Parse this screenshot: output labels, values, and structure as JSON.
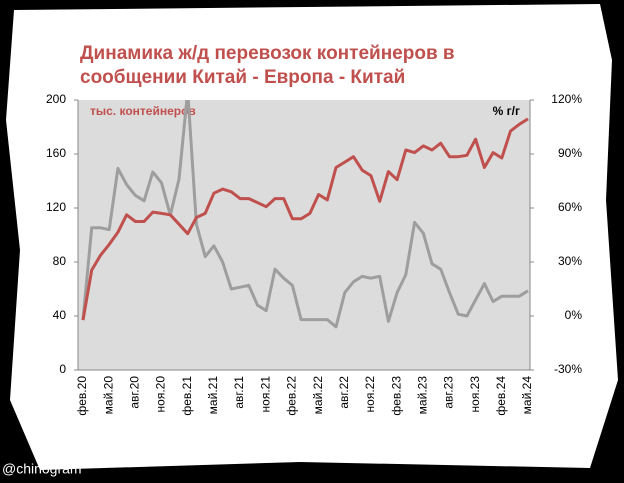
{
  "chart_data": {
    "type": "line",
    "title": "Динамика ж/д перевозок контейнеров в сообщении Китай - Европа - Китай",
    "ylabel": "тыс. контейнеров",
    "y2label": "% г/г",
    "credit": "@chinogram",
    "categories": [
      "фев.20",
      null,
      null,
      "май.20",
      null,
      null,
      "авг.20",
      null,
      null,
      "ноя.20",
      null,
      null,
      "фев.21",
      null,
      null,
      "май.21",
      null,
      null,
      "авг.21",
      null,
      null,
      "ноя.21",
      null,
      null,
      "фев.22",
      null,
      null,
      "май.22",
      null,
      null,
      "авг.22",
      null,
      null,
      "ноя.22",
      null,
      null,
      "фев.23",
      null,
      null,
      "май.23",
      null,
      null,
      "авг.23",
      null,
      null,
      "ноя.23",
      null,
      null,
      "фев.24",
      null,
      null,
      "май.24"
    ],
    "series": [
      {
        "name": "тыс. контейнеров",
        "color": "#c0504d",
        "axis": "y",
        "values": [
          37,
          74,
          85,
          93,
          102,
          115,
          110,
          110,
          117,
          116,
          115,
          108,
          101,
          113,
          116,
          131,
          134,
          132,
          127,
          127,
          124,
          121,
          127,
          127,
          112,
          112,
          116,
          130,
          126,
          150,
          154,
          158,
          148,
          144,
          125,
          147,
          141,
          163,
          161,
          166,
          163,
          168,
          158,
          158,
          159,
          171,
          150,
          161,
          157,
          177,
          182,
          186
        ]
      },
      {
        "name": "% г/г",
        "color": "#9e9e9e",
        "axis": "y2",
        "values": [
          -2,
          49,
          49,
          48,
          82,
          73,
          67,
          64,
          80,
          74,
          56,
          76,
          125,
          51,
          33,
          39,
          30,
          15,
          16,
          17,
          6,
          3,
          26,
          21,
          17,
          -2,
          -2,
          -2,
          -2,
          -6,
          13,
          19,
          22,
          21,
          22,
          -3,
          13,
          23,
          52,
          46,
          29,
          26,
          13,
          1,
          0,
          9,
          18,
          8,
          11,
          11,
          11,
          14
        ]
      }
    ],
    "ylim": [
      0,
      200
    ],
    "yticks": [
      0,
      40,
      80,
      120,
      160,
      200
    ],
    "y2lim": [
      -30,
      120
    ],
    "y2ticks": [
      {
        "value": -30,
        "label": "-30%"
      },
      {
        "value": 0,
        "label": "0%"
      },
      {
        "value": 30,
        "label": "30%"
      },
      {
        "value": 60,
        "label": "60%"
      },
      {
        "value": 90,
        "label": "90%"
      },
      {
        "value": 120,
        "label": "120%"
      }
    ],
    "grid": false
  }
}
